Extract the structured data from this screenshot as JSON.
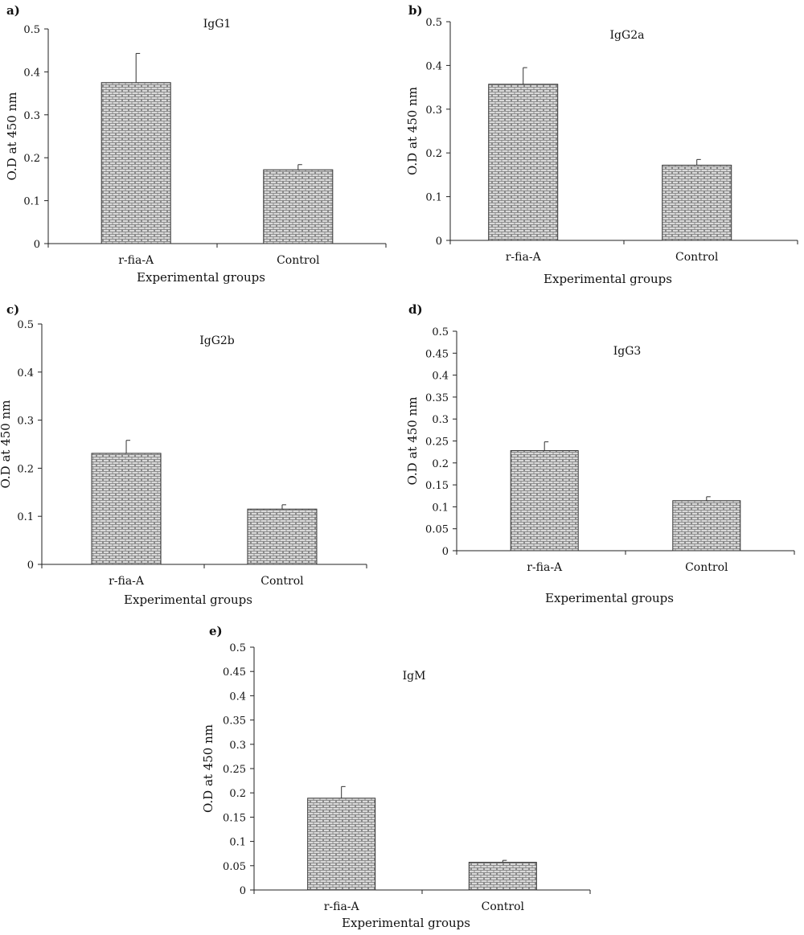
{
  "chart_data": [
    {
      "type": "bar",
      "panel_label": "a)",
      "title": "IgG1",
      "xlabel": "Experimental groups",
      "ylabel": "O.D at 450 nm",
      "categories": [
        "r-fia-A",
        "Control"
      ],
      "values": [
        0.375,
        0.172
      ],
      "errors": [
        0.068,
        0.012
      ],
      "ylim": [
        0,
        0.5
      ],
      "yticks": [
        0,
        0.1,
        0.2,
        0.3,
        0.4,
        0.5
      ],
      "ytick_labels": [
        "0",
        "0.1",
        "0.2",
        "0.3",
        "0.4",
        "0.5"
      ],
      "grid": false,
      "legend": "none"
    },
    {
      "type": "bar",
      "panel_label": "b)",
      "title": "IgG2a",
      "xlabel": "Experimental groups",
      "ylabel": "O.D at 450 nm",
      "categories": [
        "r-fia-A",
        "Control"
      ],
      "values": [
        0.357,
        0.172
      ],
      "errors": [
        0.038,
        0.013
      ],
      "ylim": [
        0,
        0.5
      ],
      "yticks": [
        0,
        0.1,
        0.2,
        0.3,
        0.4,
        0.5
      ],
      "ytick_labels": [
        "0",
        "0.1",
        "0.2",
        "0.3",
        "0.4",
        "0.5"
      ],
      "grid": false,
      "legend": "none"
    },
    {
      "type": "bar",
      "panel_label": "c)",
      "title": "IgG2b",
      "xlabel": "Experimental groups",
      "ylabel": "O.D at 450 nm",
      "categories": [
        "r-fia-A",
        "Control"
      ],
      "values": [
        0.231,
        0.115
      ],
      "errors": [
        0.027,
        0.009
      ],
      "ylim": [
        0,
        0.5
      ],
      "yticks": [
        0,
        0.1,
        0.2,
        0.3,
        0.4,
        0.5
      ],
      "ytick_labels": [
        "0",
        "0.1",
        "0.2",
        "0.3",
        "0.4",
        "0.5"
      ],
      "grid": false,
      "legend": "none"
    },
    {
      "type": "bar",
      "panel_label": "d)",
      "title": "IgG3",
      "xlabel": "Experimental groups",
      "ylabel": "O.D at 450 nm",
      "categories": [
        "r-fia-A",
        "Control"
      ],
      "values": [
        0.228,
        0.114
      ],
      "errors": [
        0.02,
        0.009
      ],
      "ylim": [
        0,
        0.5
      ],
      "yticks": [
        0,
        0.05,
        0.1,
        0.15,
        0.2,
        0.25,
        0.3,
        0.35,
        0.4,
        0.45,
        0.5
      ],
      "ytick_labels": [
        "0",
        "0.05",
        "0.1",
        "0.15",
        "0.2",
        "0.25",
        "0.3",
        "0.35",
        "0.4",
        "0.45",
        "0.5"
      ],
      "grid": false,
      "legend": "none"
    },
    {
      "type": "bar",
      "panel_label": "e)",
      "title": "IgM",
      "xlabel": "Experimental groups",
      "ylabel": "O.D at 450 nm",
      "categories": [
        "r-fia-A",
        "Control"
      ],
      "values": [
        0.189,
        0.057
      ],
      "errors": [
        0.024,
        0.004
      ],
      "ylim": [
        0,
        0.5
      ],
      "yticks": [
        0,
        0.05,
        0.1,
        0.15,
        0.2,
        0.25,
        0.3,
        0.35,
        0.4,
        0.45,
        0.5
      ],
      "ytick_labels": [
        "0",
        "0.05",
        "0.1",
        "0.15",
        "0.2",
        "0.25",
        "0.3",
        "0.35",
        "0.4",
        "0.45",
        "0.5"
      ],
      "grid": false,
      "legend": "none"
    }
  ],
  "style": {
    "bar_fill": "#d9d9d9",
    "bar_pattern": "brick",
    "axis_color": "#222222"
  }
}
